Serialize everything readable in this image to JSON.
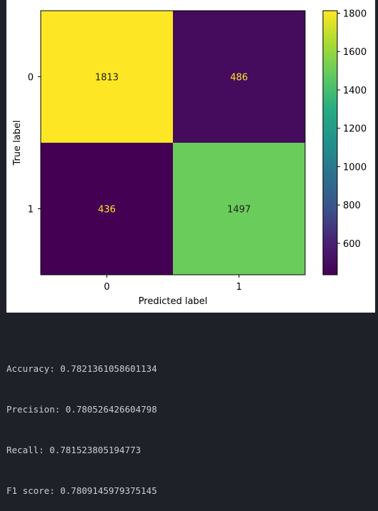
{
  "chart_data": {
    "type": "heatmap",
    "title": "",
    "xlabel": "Predicted label",
    "ylabel": "True label",
    "x_categories": [
      "0",
      "1"
    ],
    "y_categories": [
      "0",
      "1"
    ],
    "values": [
      [
        1813,
        486
      ],
      [
        436,
        1497
      ]
    ],
    "colormap": "viridis",
    "colorbar": {
      "range": [
        436,
        1813
      ],
      "ticks": [
        600,
        800,
        1000,
        1200,
        1400,
        1600,
        1800
      ]
    },
    "annotation_colors": {
      "on_dark": "#fde725",
      "on_light": "#1f1f1f"
    }
  },
  "output": {
    "lines": [
      "Accuracy: 0.7821361058601134",
      "Precision: 0.780526426604798",
      "Recall: 0.781523805194773",
      "F1 score: 0.7809145979375145"
    ]
  },
  "colors": {
    "page_background": "#1e2228",
    "figure_background": "#ffffff",
    "output_text": "#c9ced6"
  }
}
